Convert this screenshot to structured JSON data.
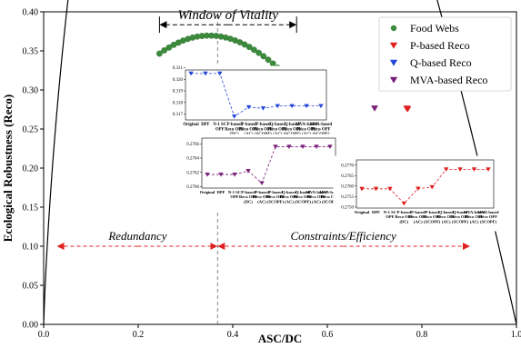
{
  "chart_data": {
    "type": "scatter",
    "xlabel": "ASC/DC",
    "ylabel": "Ecological Robustness (Reco)",
    "xlim": [
      0,
      1
    ],
    "ylim": [
      0,
      0.4
    ],
    "xticks": [
      "0.0",
      "0.2",
      "0.4",
      "0.6",
      "0.8",
      "1.0"
    ],
    "yticks": [
      "0.00",
      "0.05",
      "0.10",
      "0.15",
      "0.20",
      "0.25",
      "0.30",
      "0.35",
      "0.40"
    ],
    "grid": false,
    "legend_position": "top-right",
    "curve": {
      "equation": "-e*a*ln(a)",
      "peak_a": 0.3679
    },
    "window_label": "Window of Vitality",
    "window_range": [
      0.245,
      0.535
    ],
    "window_y": 0.3835,
    "vline_x": 0.3679,
    "redundancy_label": "Redundancy",
    "constraints_label": "Constraints/Efficiency",
    "arrow_y": 0.1,
    "left_range": [
      0.03,
      0.3679
    ],
    "right_range": [
      0.3679,
      0.9
    ],
    "colors": {
      "food": "#3c8a3c",
      "p": "#e02020",
      "q": "#2547d8",
      "mva": "#7a1f7a"
    },
    "series": [
      {
        "name": "Food Webs",
        "marker": "circle",
        "color": "#3c8a3c",
        "x": [
          0.245,
          0.255,
          0.265,
          0.275,
          0.285,
          0.295,
          0.305,
          0.315,
          0.325,
          0.335,
          0.345,
          0.355,
          0.365,
          0.375,
          0.385,
          0.395,
          0.405,
          0.415,
          0.425,
          0.435,
          0.445,
          0.455,
          0.465,
          0.475,
          0.485,
          0.495,
          0.505,
          0.515,
          0.525,
          0.535
        ],
        "y": [
          0.3465,
          0.3506,
          0.3543,
          0.3577,
          0.3606,
          0.3632,
          0.3653,
          0.367,
          0.3683,
          0.3691,
          0.3695,
          0.3695,
          0.3692,
          0.3683,
          0.3671,
          0.3655,
          0.3634,
          0.361,
          0.3582,
          0.355,
          0.3514,
          0.3475,
          0.3432,
          0.3387,
          0.3338,
          0.3285,
          0.323,
          0.3172,
          0.311,
          0.3046
        ]
      },
      {
        "name": "P-based Reco",
        "marker": "triangle-down",
        "color": "#e02020",
        "x": [
          0.768,
          0.77
        ],
        "y": [
          0.2764,
          0.2755
        ]
      },
      {
        "name": "Q-based Reco",
        "marker": "triangle-down",
        "color": "#2547d8",
        "x": [
          0.572,
          0.578,
          0.582
        ],
        "y": [
          0.3205,
          0.319,
          0.318
        ]
      },
      {
        "name": "MVA-based Reco",
        "marker": "triangle-down",
        "color": "#7a1f7a",
        "x": [
          0.7
        ],
        "y": [
          0.2765
        ]
      }
    ],
    "insets": [
      {
        "name": "q-inset",
        "color": "#2547d8",
        "categories": [
          "Original",
          "DPF",
          "N-1 SC OPF",
          "P-based Reco OPF (DC)",
          "P-based Reco OPF (AC)",
          "P-based Reco OPF (SCOPF)",
          "Q-based Reco OPF (AC)",
          "Q-based Reco OPF (SCOPF)",
          "MVA-based Reco OPF (AC)",
          "MVA-based Reco OPF (SCOPF)"
        ],
        "values": [
          0.3205,
          0.3205,
          0.3205,
          0.3168,
          0.3176,
          0.3175,
          0.3177,
          0.3177,
          0.3177,
          0.3177
        ],
        "ylim": [
          0.3165,
          0.3208
        ],
        "yticks": [
          "0.321",
          "0.320",
          "0.319",
          "0.318",
          "0.317"
        ]
      },
      {
        "name": "mva-inset",
        "color": "#7a1f7a",
        "categories": [
          "Original",
          "DPF",
          "N-1 SC OPF",
          "P-based Reco OPF (DC)",
          "P-based Reco OPF (AC)",
          "P-based Reco OPF (SCOPF)",
          "Q-based Reco OPF (AC)",
          "Q-based Reco OPF (SCOPF)",
          "MVA-based Reco OPF (AC)",
          "MVA-based Reco OPF (SCOPF)"
        ],
        "values": [
          0.27617,
          0.27617,
          0.27617,
          0.27622,
          0.27605,
          0.27656,
          0.27656,
          0.27656,
          0.27656,
          0.27656
        ],
        "ylim": [
          0.27598,
          0.27668
        ],
        "yticks": [
          "0.2766",
          "0.2764",
          "0.2762",
          "0.2760"
        ]
      },
      {
        "name": "p-inset",
        "color": "#e02020",
        "categories": [
          "Original",
          "DPF",
          "N-1 SC OPF",
          "P-based Reco OPF (DC)",
          "P-based Reco OPF (AC)",
          "P-based Reco OPF (SCOPF)",
          "Q-based Reco OPF (AC)",
          "Q-based Reco OPF (SCOPF)",
          "MVA-based Reco OPF (AC)",
          "MVA-based Reco OPF (SCOPF)"
        ],
        "values": [
          0.27587,
          0.27587,
          0.27587,
          0.27517,
          0.27588,
          0.27595,
          0.2768,
          0.2768,
          0.2768,
          0.2768
        ],
        "ylim": [
          0.27495,
          0.27725
        ],
        "yticks": [
          "0.2770",
          "0.2765",
          "0.2760",
          "0.2755",
          "0.2750"
        ]
      }
    ]
  }
}
